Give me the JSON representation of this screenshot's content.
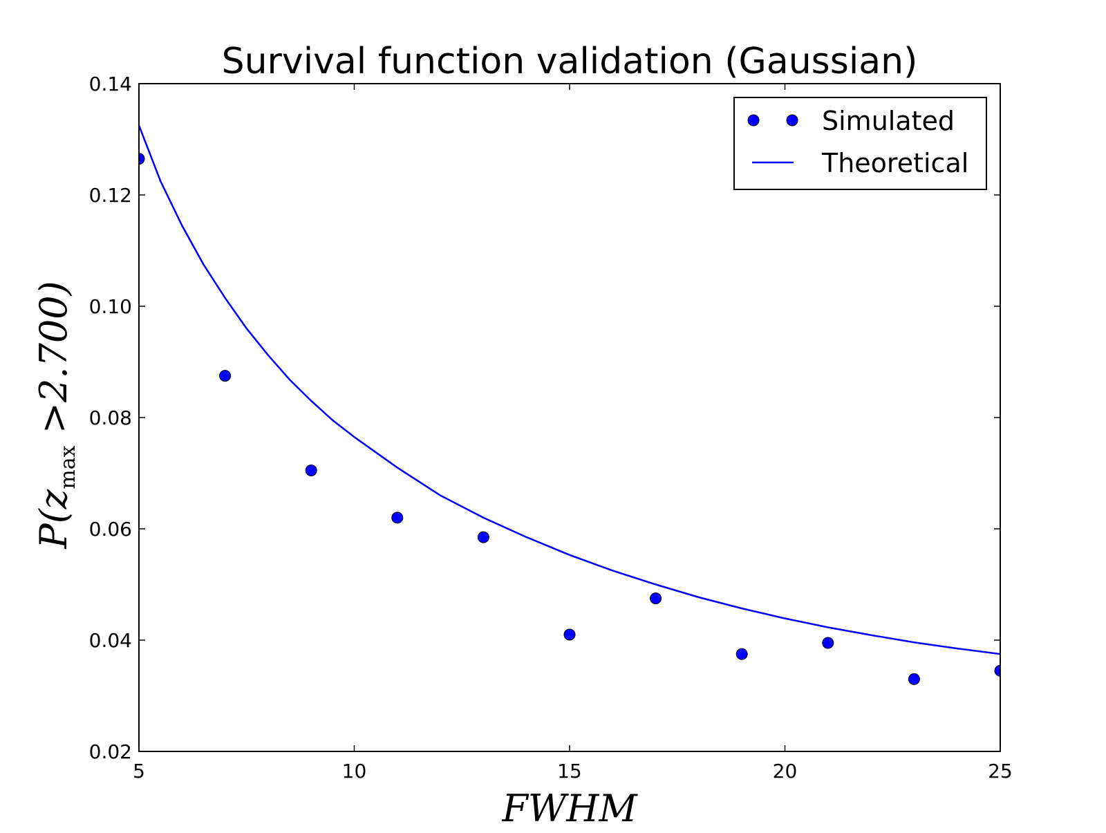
{
  "chart_data": {
    "type": "scatter",
    "title": "Survival function validation (Gaussian)",
    "xlabel": "FWHM",
    "ylabel": {
      "prefix": "P(",
      "variable": "z",
      "subscript": "max",
      "suffix": " >2.700)"
    },
    "xlim": [
      5,
      25
    ],
    "ylim": [
      0.02,
      0.14
    ],
    "xticks": [
      5,
      10,
      15,
      20,
      25
    ],
    "xtick_labels": [
      "5",
      "10",
      "15",
      "20",
      "25"
    ],
    "yticks": [
      0.02,
      0.04,
      0.06,
      0.08,
      0.1,
      0.12,
      0.14
    ],
    "ytick_labels": [
      "0.02",
      "0.04",
      "0.06",
      "0.08",
      "0.10",
      "0.12",
      "0.14"
    ],
    "grid": false,
    "legend_position": "top-right",
    "series": [
      {
        "name": "Simulated",
        "kind": "points",
        "color": "#0000ff",
        "x": [
          5,
          7,
          9,
          11,
          13,
          15,
          17,
          19,
          21,
          23,
          25
        ],
        "y": [
          0.1265,
          0.0875,
          0.0705,
          0.062,
          0.0585,
          0.041,
          0.0475,
          0.0375,
          0.0395,
          0.033,
          0.0345
        ]
      },
      {
        "name": "Theoretical",
        "kind": "line",
        "color": "#0000ff",
        "x": [
          5,
          5.5,
          6,
          6.5,
          7,
          7.5,
          8,
          8.5,
          9,
          9.5,
          10,
          11,
          12,
          13,
          14,
          15,
          16,
          17,
          18,
          19,
          20,
          21,
          22,
          23,
          24,
          25
        ],
        "y": [
          0.1325,
          0.1225,
          0.1145,
          0.1075,
          0.1015,
          0.096,
          0.0912,
          0.0868,
          0.083,
          0.0795,
          0.0765,
          0.071,
          0.066,
          0.062,
          0.0585,
          0.0553,
          0.0525,
          0.05,
          0.0477,
          0.0457,
          0.0439,
          0.0423,
          0.0409,
          0.0396,
          0.0385,
          0.0375
        ]
      }
    ]
  }
}
